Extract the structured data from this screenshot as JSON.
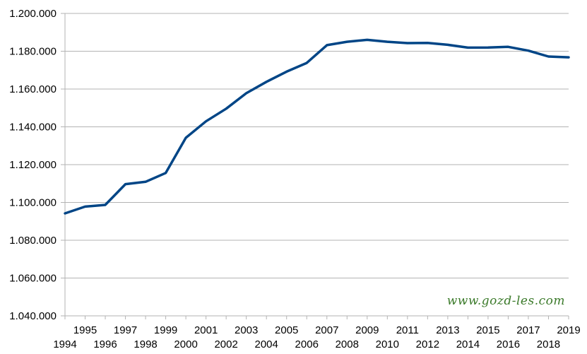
{
  "watermark": "www.gozd-les.com",
  "chart_data": {
    "type": "line",
    "title": "",
    "xlabel": "",
    "ylabel": "",
    "grid": true,
    "legend": "none",
    "line_color": "#004586",
    "x": [
      1994,
      1995,
      1996,
      1997,
      1998,
      1999,
      2000,
      2001,
      2002,
      2003,
      2004,
      2005,
      2006,
      2007,
      2008,
      2009,
      2010,
      2011,
      2012,
      2013,
      2014,
      2015,
      2016,
      2017,
      2018,
      2019
    ],
    "x_tick_labels": [
      "1994",
      "1995",
      "1996",
      "1997",
      "1998",
      "1999",
      "2000",
      "2001",
      "2002",
      "2003",
      "2004",
      "2005",
      "2006",
      "2007",
      "2008",
      "2009",
      "2010",
      "2011",
      "2012",
      "2013",
      "2014",
      "2015",
      "2016",
      "2017",
      "2018",
      "2019"
    ],
    "series": [
      {
        "values": [
          1094200,
          1097800,
          1098700,
          1109700,
          1110900,
          1115600,
          1134200,
          1142900,
          1149600,
          1157800,
          1163800,
          1169200,
          1173800,
          1183200,
          1185000,
          1186000,
          1185000,
          1184300,
          1184400,
          1183400,
          1181900,
          1182000,
          1182300,
          1180300,
          1177200,
          1176800
        ]
      }
    ],
    "ylim": [
      1040000,
      1200000
    ],
    "y_ticks": [
      1040000,
      1060000,
      1080000,
      1100000,
      1120000,
      1140000,
      1160000,
      1180000,
      1200000
    ],
    "y_tick_labels": [
      "1.040.000",
      "1.060.000",
      "1.080.000",
      "1.100.000",
      "1.120.000",
      "1.140.000",
      "1.160.000",
      "1.180.000",
      "1.200.000"
    ]
  }
}
